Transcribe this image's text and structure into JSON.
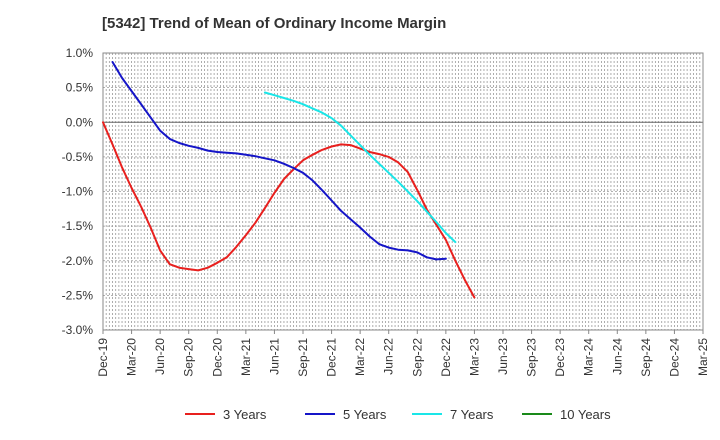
{
  "chart_data": {
    "type": "line",
    "title": "[5342]  Trend of Mean of Ordinary Income Margin",
    "xlabel": "",
    "ylabel": "",
    "ylim": [
      -3.0,
      1.0
    ],
    "y_ticks": [
      "1.0%",
      "0.5%",
      "0.0%",
      "-0.5%",
      "-1.0%",
      "-1.5%",
      "-2.0%",
      "-2.5%",
      "-3.0%"
    ],
    "x_ticks": [
      "Dec-19",
      "Mar-20",
      "Jun-20",
      "Sep-20",
      "Dec-20",
      "Mar-21",
      "Jun-21",
      "Sep-21",
      "Dec-21",
      "Mar-22",
      "Jun-22",
      "Sep-22",
      "Dec-22",
      "Mar-23",
      "Jun-23",
      "Sep-23",
      "Dec-23",
      "Mar-24",
      "Jun-24",
      "Sep-24",
      "Dec-24",
      "Mar-25"
    ],
    "grid": true,
    "legend_position": "bottom",
    "series": [
      {
        "name": "3 Years",
        "color": "#e8201e",
        "start_index": 0,
        "values": [
          0.0,
          -0.32,
          -0.65,
          -0.95,
          -1.22,
          -1.52,
          -1.85,
          -2.05,
          -2.1,
          -2.12,
          -2.14,
          -2.1,
          -2.03,
          -1.95,
          -1.8,
          -1.63,
          -1.45,
          -1.24,
          -1.02,
          -0.82,
          -0.68,
          -0.55,
          -0.47,
          -0.4,
          -0.35,
          -0.32,
          -0.33,
          -0.38,
          -0.43,
          -0.46,
          -0.5,
          -0.58,
          -0.72,
          -0.98,
          -1.26,
          -1.48,
          -1.7,
          -2.0,
          -2.28,
          -2.53
        ]
      },
      {
        "name": "5 Years",
        "color": "#1515c8",
        "start_index": 1,
        "values": [
          0.87,
          0.64,
          0.45,
          0.26,
          0.07,
          -0.12,
          -0.24,
          -0.3,
          -0.34,
          -0.37,
          -0.41,
          -0.43,
          -0.44,
          -0.45,
          -0.47,
          -0.49,
          -0.52,
          -0.55,
          -0.6,
          -0.66,
          -0.73,
          -0.84,
          -0.98,
          -1.13,
          -1.28,
          -1.4,
          -1.52,
          -1.65,
          -1.76,
          -1.81,
          -1.84,
          -1.85,
          -1.88,
          -1.95,
          -1.98,
          -1.97
        ]
      },
      {
        "name": "7 Years",
        "color": "#1ae6e8",
        "start_index": 17,
        "values": [
          0.43,
          0.39,
          0.35,
          0.31,
          0.26,
          0.2,
          0.14,
          0.06,
          -0.05,
          -0.19,
          -0.33,
          -0.47,
          -0.6,
          -0.73,
          -0.86,
          -1.0,
          -1.14,
          -1.29,
          -1.44,
          -1.6,
          -1.73
        ]
      },
      {
        "name": "10 Years",
        "color": "#1a8a1a",
        "start_index": 0,
        "values": []
      }
    ]
  }
}
